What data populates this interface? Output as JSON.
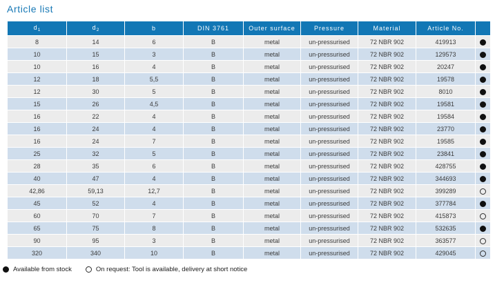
{
  "title": "Article list",
  "table": {
    "columns": [
      {
        "key": "d1",
        "label": "d",
        "sub": "1"
      },
      {
        "key": "d2",
        "label": "d",
        "sub": "2"
      },
      {
        "key": "b",
        "label": "b"
      },
      {
        "key": "din",
        "label": "DIN 3761"
      },
      {
        "key": "outer_surface",
        "label": "Outer surface"
      },
      {
        "key": "pressure",
        "label": "Pressure"
      },
      {
        "key": "material",
        "label": "Material"
      },
      {
        "key": "article_no",
        "label": "Article No."
      },
      {
        "key": "stock",
        "label": ""
      }
    ],
    "rows": [
      {
        "d1": "8",
        "d2": "14",
        "b": "6",
        "din": "B",
        "outer_surface": "metal",
        "pressure": "un-pressurised",
        "material": "72 NBR 902",
        "article_no": "419913",
        "stock": "filled"
      },
      {
        "d1": "10",
        "d2": "15",
        "b": "3",
        "din": "B",
        "outer_surface": "metal",
        "pressure": "un-pressurised",
        "material": "72 NBR 902",
        "article_no": "129573",
        "stock": "filled"
      },
      {
        "d1": "10",
        "d2": "16",
        "b": "4",
        "din": "B",
        "outer_surface": "metal",
        "pressure": "un-pressurised",
        "material": "72 NBR 902",
        "article_no": "20247",
        "stock": "filled"
      },
      {
        "d1": "12",
        "d2": "18",
        "b": "5,5",
        "din": "B",
        "outer_surface": "metal",
        "pressure": "un-pressurised",
        "material": "72 NBR 902",
        "article_no": "19578",
        "stock": "filled"
      },
      {
        "d1": "12",
        "d2": "30",
        "b": "5",
        "din": "B",
        "outer_surface": "metal",
        "pressure": "un-pressurised",
        "material": "72 NBR 902",
        "article_no": "8010",
        "stock": "filled"
      },
      {
        "d1": "15",
        "d2": "26",
        "b": "4,5",
        "din": "B",
        "outer_surface": "metal",
        "pressure": "un-pressurised",
        "material": "72 NBR 902",
        "article_no": "19581",
        "stock": "filled"
      },
      {
        "d1": "16",
        "d2": "22",
        "b": "4",
        "din": "B",
        "outer_surface": "metal",
        "pressure": "un-pressurised",
        "material": "72 NBR 902",
        "article_no": "19584",
        "stock": "filled"
      },
      {
        "d1": "16",
        "d2": "24",
        "b": "4",
        "din": "B",
        "outer_surface": "metal",
        "pressure": "un-pressurised",
        "material": "72 NBR 902",
        "article_no": "23770",
        "stock": "filled"
      },
      {
        "d1": "16",
        "d2": "24",
        "b": "7",
        "din": "B",
        "outer_surface": "metal",
        "pressure": "un-pressurised",
        "material": "72 NBR 902",
        "article_no": "19585",
        "stock": "filled"
      },
      {
        "d1": "25",
        "d2": "32",
        "b": "5",
        "din": "B",
        "outer_surface": "metal",
        "pressure": "un-pressurised",
        "material": "72 NBR 902",
        "article_no": "23841",
        "stock": "filled"
      },
      {
        "d1": "28",
        "d2": "35",
        "b": "6",
        "din": "B",
        "outer_surface": "metal",
        "pressure": "un-pressurised",
        "material": "72 NBR 902",
        "article_no": "428755",
        "stock": "filled"
      },
      {
        "d1": "40",
        "d2": "47",
        "b": "4",
        "din": "B",
        "outer_surface": "metal",
        "pressure": "un-pressurised",
        "material": "72 NBR 902",
        "article_no": "344693",
        "stock": "filled"
      },
      {
        "d1": "42,86",
        "d2": "59,13",
        "b": "12,7",
        "din": "B",
        "outer_surface": "metal",
        "pressure": "un-pressurised",
        "material": "72 NBR 902",
        "article_no": "399289",
        "stock": "open"
      },
      {
        "d1": "45",
        "d2": "52",
        "b": "4",
        "din": "B",
        "outer_surface": "metal",
        "pressure": "un-pressurised",
        "material": "72 NBR 902",
        "article_no": "377784",
        "stock": "filled"
      },
      {
        "d1": "60",
        "d2": "70",
        "b": "7",
        "din": "B",
        "outer_surface": "metal",
        "pressure": "un-pressurised",
        "material": "72 NBR 902",
        "article_no": "415873",
        "stock": "open"
      },
      {
        "d1": "65",
        "d2": "75",
        "b": "8",
        "din": "B",
        "outer_surface": "metal",
        "pressure": "un-pressurised",
        "material": "72 NBR 902",
        "article_no": "532635",
        "stock": "filled"
      },
      {
        "d1": "90",
        "d2": "95",
        "b": "3",
        "din": "B",
        "outer_surface": "metal",
        "pressure": "un-pressurised",
        "material": "72 NBR 902",
        "article_no": "363577",
        "stock": "open"
      },
      {
        "d1": "320",
        "d2": "340",
        "b": "10",
        "din": "B",
        "outer_surface": "metal",
        "pressure": "un-pressurised",
        "material": "72 NBR 902",
        "article_no": "429045",
        "stock": "open"
      }
    ]
  },
  "legend": {
    "filled_label": "Available from stock",
    "open_label": "On request: Tool is available, delivery at short notice"
  },
  "colors": {
    "header_bg": "#1277b5",
    "title_text": "#1577b5",
    "row_gray": "#ececec",
    "row_blue": "#cfddec",
    "text": "#3a3a3a"
  }
}
